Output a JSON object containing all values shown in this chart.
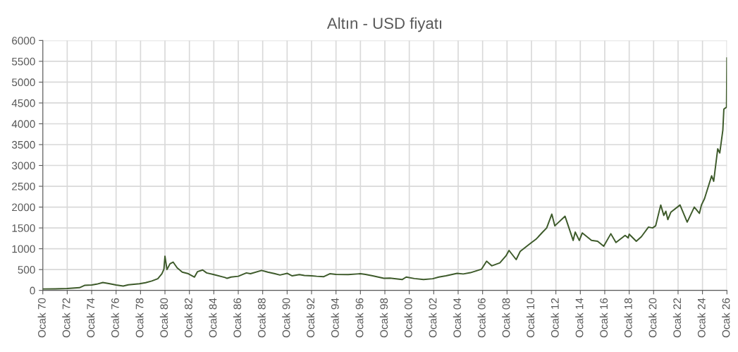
{
  "chart_data": {
    "type": "line",
    "title": "Altın - USD fiyatı",
    "x": [
      "1970-01",
      "1971-01",
      "1972-01",
      "1973-01",
      "1973-06",
      "1974-01",
      "1974-06",
      "1974-12",
      "1975-06",
      "1976-01",
      "1976-08",
      "1977-01",
      "1977-12",
      "1978-06",
      "1978-12",
      "1979-06",
      "1979-10",
      "1979-12",
      "1980-01",
      "1980-03",
      "1980-06",
      "1980-09",
      "1981-01",
      "1981-06",
      "1981-12",
      "1982-06",
      "1982-09",
      "1983-02",
      "1983-06",
      "1984-01",
      "1984-12",
      "1985-02",
      "1985-06",
      "1986-01",
      "1986-09",
      "1987-01",
      "1987-12",
      "1988-06",
      "1989-01",
      "1989-06",
      "1990-01",
      "1990-06",
      "1991-01",
      "1991-06",
      "1992-01",
      "1992-06",
      "1993-01",
      "1993-07",
      "1994-01",
      "1995-01",
      "1996-01",
      "1996-06",
      "1997-01",
      "1997-12",
      "1998-06",
      "1999-06",
      "1999-10",
      "2000-06",
      "2001-03",
      "2001-12",
      "2002-06",
      "2003-01",
      "2003-12",
      "2004-06",
      "2005-01",
      "2005-12",
      "2006-05",
      "2006-10",
      "2007-06",
      "2007-12",
      "2008-03",
      "2008-10",
      "2009-02",
      "2009-12",
      "2010-06",
      "2010-12",
      "2011-04",
      "2011-09",
      "2011-12",
      "2012-10",
      "2013-06",
      "2013-08",
      "2013-12",
      "2014-03",
      "2014-12",
      "2015-06",
      "2015-12",
      "2016-07",
      "2016-12",
      "2017-09",
      "2017-12",
      "2018-01",
      "2018-08",
      "2019-01",
      "2019-08",
      "2019-12",
      "2020-03",
      "2020-08",
      "2020-11",
      "2021-01",
      "2021-03",
      "2021-06",
      "2022-03",
      "2022-10",
      "2023-05",
      "2023-10",
      "2023-12",
      "2024-03",
      "2024-10",
      "2024-12",
      "2025-04",
      "2025-06",
      "2025-09",
      "2025-10",
      "2025-12-20",
      "2026-01-01"
    ],
    "series": [
      {
        "color": "#3d5a2a",
        "values": [
          35,
          37,
          45,
          65,
          120,
          130,
          150,
          190,
          165,
          130,
          105,
          135,
          160,
          185,
          225,
          280,
          400,
          510,
          820,
          500,
          640,
          680,
          540,
          440,
          400,
          320,
          450,
          490,
          420,
          380,
          310,
          290,
          320,
          340,
          420,
          400,
          480,
          440,
          400,
          370,
          410,
          350,
          380,
          360,
          350,
          340,
          330,
          400,
          385,
          380,
          400,
          385,
          350,
          290,
          295,
          260,
          320,
          285,
          260,
          280,
          320,
          350,
          410,
          395,
          425,
          510,
          700,
          590,
          660,
          830,
          960,
          740,
          940,
          1130,
          1240,
          1400,
          1500,
          1830,
          1550,
          1780,
          1200,
          1400,
          1200,
          1380,
          1200,
          1180,
          1060,
          1360,
          1150,
          1320,
          1260,
          1350,
          1180,
          1290,
          1520,
          1500,
          1550,
          2050,
          1800,
          1900,
          1700,
          1880,
          2050,
          1640,
          2000,
          1850,
          2050,
          2200,
          2750,
          2620,
          3400,
          3300,
          3850,
          4350,
          4400,
          5580
        ]
      }
    ],
    "xlim": [
      "1970-01",
      "2026-01"
    ],
    "xticks": [
      {
        "value": "1970-01",
        "label": "Ocak 70"
      },
      {
        "value": "1972-01",
        "label": "Ocak 72"
      },
      {
        "value": "1974-01",
        "label": "Ocak 74"
      },
      {
        "value": "1976-01",
        "label": "Ocak 76"
      },
      {
        "value": "1978-01",
        "label": "Ocak 78"
      },
      {
        "value": "1980-01",
        "label": "Ocak 80"
      },
      {
        "value": "1982-01",
        "label": "Ocak 82"
      },
      {
        "value": "1984-01",
        "label": "Ocak 84"
      },
      {
        "value": "1986-01",
        "label": "Ocak 86"
      },
      {
        "value": "1988-01",
        "label": "Ocak 88"
      },
      {
        "value": "1990-01",
        "label": "Ocak 90"
      },
      {
        "value": "1992-01",
        "label": "Ocak 92"
      },
      {
        "value": "1994-01",
        "label": "Ocak 94"
      },
      {
        "value": "1996-01",
        "label": "Ocak 96"
      },
      {
        "value": "1998-01",
        "label": "Ocak 98"
      },
      {
        "value": "2000-01",
        "label": "Ocak 00"
      },
      {
        "value": "2002-01",
        "label": "Ocak 02"
      },
      {
        "value": "2004-01",
        "label": "Ocak 04"
      },
      {
        "value": "2006-01",
        "label": "Ocak 06"
      },
      {
        "value": "2008-01",
        "label": "Ocak 08"
      },
      {
        "value": "2010-01",
        "label": "Ocak 10"
      },
      {
        "value": "2012-01",
        "label": "Ocak 12"
      },
      {
        "value": "2014-01",
        "label": "Ocak 14"
      },
      {
        "value": "2016-01",
        "label": "Ocak 16"
      },
      {
        "value": "2018-01",
        "label": "Ocak 18"
      },
      {
        "value": "2020-01",
        "label": "Ocak 20"
      },
      {
        "value": "2022-01",
        "label": "Ocak 22"
      },
      {
        "value": "2024-01",
        "label": "Ocak 24"
      },
      {
        "value": "2026-01",
        "label": "Ocak 26"
      }
    ],
    "ylim": [
      0,
      6000
    ],
    "yticks": [
      0,
      500,
      1000,
      1500,
      2000,
      2500,
      3000,
      3500,
      4000,
      4500,
      5000,
      5500,
      6000
    ],
    "grid": true,
    "marker": "none",
    "line_style": "solid"
  }
}
